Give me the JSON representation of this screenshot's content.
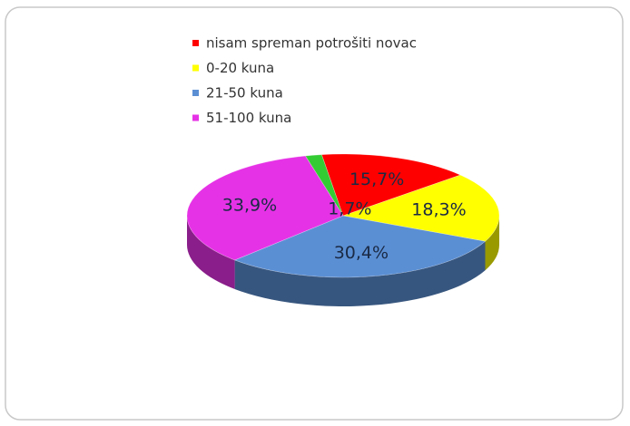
{
  "chart_data": {
    "type": "pie3d",
    "categories": [
      null,
      "nisam spreman potrošiti novac",
      "0-20 kuna",
      "21-50 kuna",
      "51-100 kuna"
    ],
    "values": [
      1.7,
      15.7,
      18.3,
      30.4,
      33.9
    ],
    "value_labels": [
      "1,7%",
      "15,7%",
      "18,3%",
      "30,4%",
      "33,9%"
    ],
    "colors": [
      "#33cc33",
      "#ff0000",
      "#ffff00",
      "#5b8fd4",
      "#e632e6"
    ]
  }
}
